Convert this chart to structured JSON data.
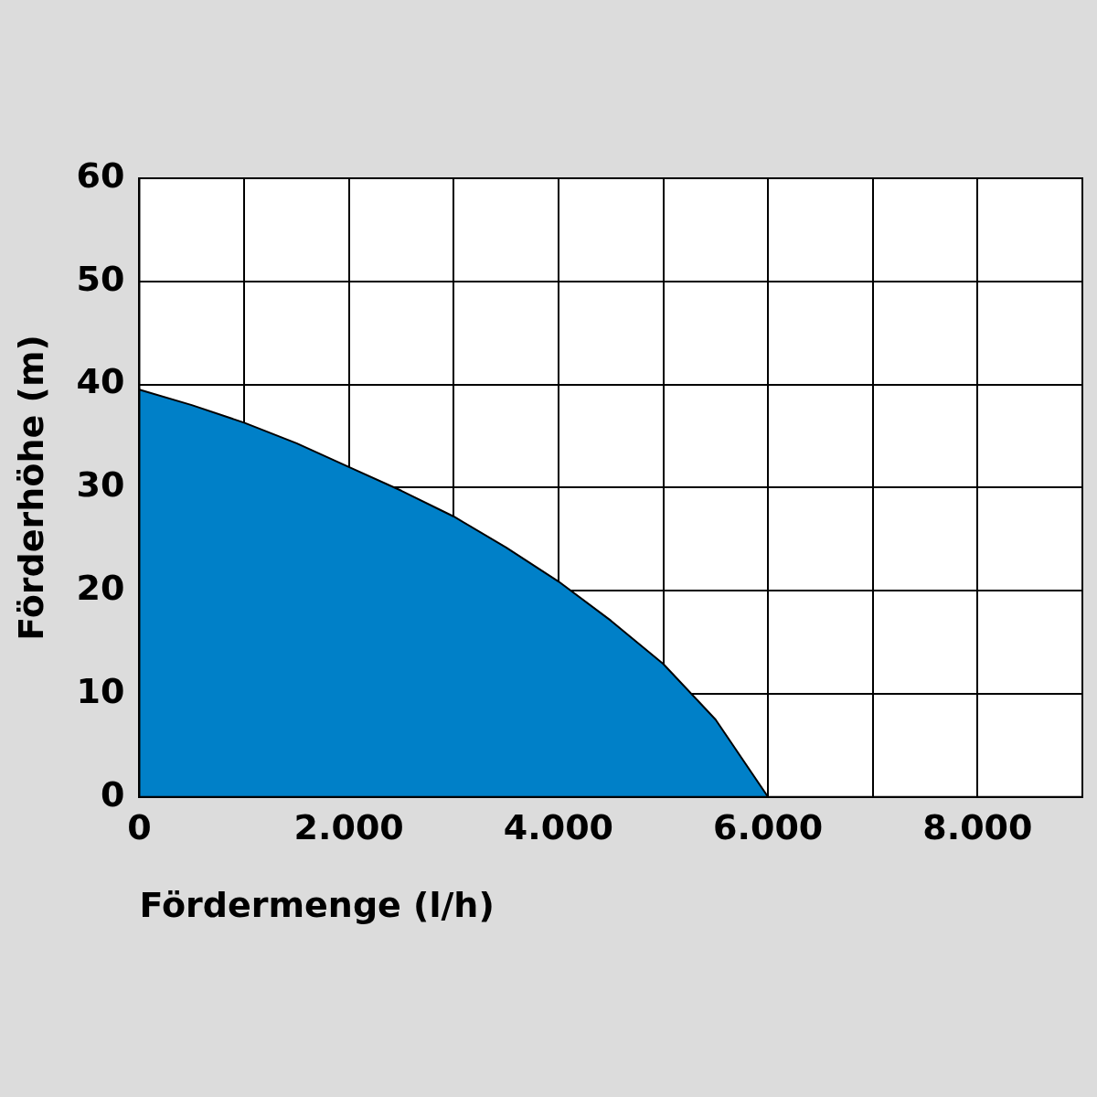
{
  "chart_data": {
    "type": "area",
    "xlabel": "Fördermenge (l/h)",
    "ylabel": "Förderhöhe (m)",
    "x": [
      0,
      500,
      1000,
      1500,
      2000,
      2500,
      3000,
      3500,
      4000,
      4500,
      5000,
      5500,
      6000
    ],
    "series": [
      {
        "color": "#0080c8",
        "values": [
          39.5,
          38,
          36.3,
          34.3,
          32,
          29.7,
          27.2,
          24.2,
          20.9,
          17.1,
          12.9,
          7.5,
          0
        ]
      }
    ],
    "xlim": [
      0,
      9000
    ],
    "xticks": [
      0,
      {
        "value": 1000,
        "label": null
      },
      {
        "value": 2000,
        "label": "2.000"
      },
      {
        "value": 3000,
        "label": null
      },
      {
        "value": 4000,
        "label": "4.000"
      },
      {
        "value": 5000,
        "label": null
      },
      {
        "value": 6000,
        "label": "6.000"
      },
      {
        "value": 7000,
        "label": null
      },
      {
        "value": 8000,
        "label": "8.000"
      },
      {
        "value": 9000,
        "label": null
      }
    ],
    "ylim": [
      0,
      60
    ],
    "yticks": [
      0,
      10,
      20,
      30,
      40,
      50,
      60
    ],
    "grid": true,
    "legend": false
  }
}
